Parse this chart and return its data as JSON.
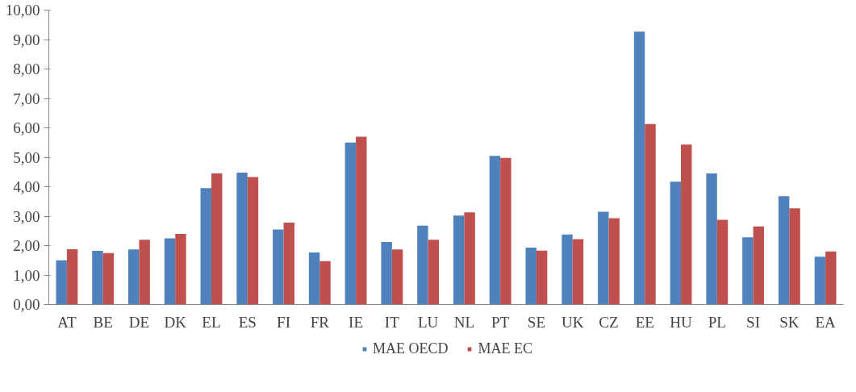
{
  "chart_data": {
    "type": "bar",
    "categories": [
      "AT",
      "BE",
      "DE",
      "DK",
      "EL",
      "ES",
      "FI",
      "FR",
      "IE",
      "IT",
      "LU",
      "NL",
      "PT",
      "SE",
      "UK",
      "CZ",
      "EE",
      "HU",
      "PL",
      "SI",
      "SK",
      "EA"
    ],
    "series": [
      {
        "name": "MAE OECD",
        "color": "#4f81bd",
        "values": [
          1.5,
          1.82,
          1.87,
          2.25,
          3.95,
          4.48,
          2.55,
          1.77,
          5.5,
          2.12,
          2.68,
          3.02,
          5.05,
          1.93,
          2.38,
          3.15,
          9.27,
          4.17,
          4.45,
          2.28,
          3.68,
          1.62
        ]
      },
      {
        "name": "MAE EC",
        "color": "#c0504d",
        "values": [
          1.88,
          1.75,
          2.2,
          2.4,
          4.45,
          4.33,
          2.78,
          1.47,
          5.7,
          1.87,
          2.2,
          3.13,
          4.98,
          1.83,
          2.22,
          2.93,
          6.13,
          5.43,
          2.88,
          2.65,
          3.27,
          1.8
        ]
      }
    ],
    "ylim": [
      0,
      10
    ],
    "yticks": [
      {
        "value": 0,
        "label": "0,00"
      },
      {
        "value": 1,
        "label": "1,00"
      },
      {
        "value": 2,
        "label": "2,00"
      },
      {
        "value": 3,
        "label": "3,00"
      },
      {
        "value": 4,
        "label": "4,00"
      },
      {
        "value": 5,
        "label": "5,00"
      },
      {
        "value": 6,
        "label": "6,00"
      },
      {
        "value": 7,
        "label": "7,00"
      },
      {
        "value": 8,
        "label": "8,00"
      },
      {
        "value": 9,
        "label": "9,00"
      },
      {
        "value": 10,
        "label": "10,00"
      }
    ],
    "grid": false,
    "legend": "bottom"
  }
}
